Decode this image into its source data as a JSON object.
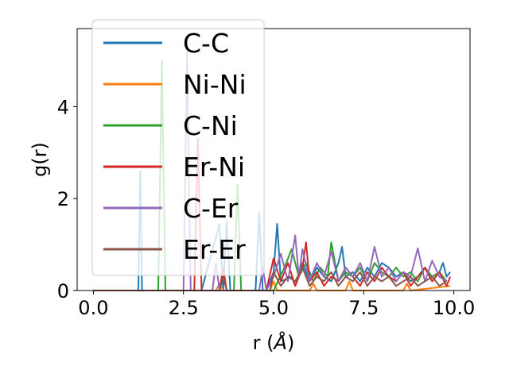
{
  "chart_data": {
    "type": "line",
    "title": "",
    "xlabel": "r (",
    "xlabel_unit": "Å",
    "xlabel_close": ")",
    "ylabel": "g(r)",
    "xlim": [
      -0.45,
      10.45
    ],
    "ylim": [
      0,
      5.7
    ],
    "grid": false,
    "legend_position": "top-left",
    "x_ticks": [
      0.0,
      2.5,
      5.0,
      7.5,
      10.0
    ],
    "x_tick_labels": [
      "0.0",
      "2.5",
      "5.0",
      "7.5",
      "10.0"
    ],
    "y_ticks": [
      0,
      2,
      4
    ],
    "y_tick_labels": [
      "0",
      "2",
      "4"
    ],
    "series": [
      {
        "name": "C-C",
        "color": "#1f77b4",
        "x": [
          0.0,
          1.25,
          1.3,
          1.35,
          1.5,
          3.0,
          3.5,
          3.6,
          3.7,
          3.8,
          4.5,
          4.6,
          4.7,
          4.8,
          5.0,
          5.1,
          5.2,
          5.5,
          5.6,
          5.8,
          6.0,
          6.2,
          6.4,
          6.6,
          6.8,
          6.9,
          7.0,
          7.2,
          7.4,
          7.6,
          7.8,
          8.0,
          8.2,
          8.4,
          8.6,
          8.8,
          9.0,
          9.2,
          9.4,
          9.6,
          9.7,
          9.8,
          9.9
        ],
        "y": [
          0,
          0,
          2.6,
          0,
          0,
          0,
          1.45,
          0,
          1.5,
          0,
          0,
          1.7,
          0,
          0,
          0.4,
          1.45,
          0.2,
          0.3,
          0.1,
          0.6,
          0.2,
          0.5,
          0.3,
          0.2,
          0.6,
          0.95,
          0.3,
          0.4,
          0.2,
          0.5,
          0.3,
          0.6,
          0.5,
          0.3,
          0.4,
          0.2,
          0.3,
          0.5,
          0.2,
          0.4,
          0.6,
          0.3,
          0.4
        ]
      },
      {
        "name": "Ni-Ni",
        "color": "#ff7f0e",
        "x": [
          0.0,
          2.4,
          2.5,
          2.6,
          3.4,
          3.5,
          3.6,
          4.9,
          5.0,
          5.1,
          6.0,
          6.1,
          6.2,
          7.0,
          7.1,
          7.2,
          8.6,
          8.7,
          8.8,
          9.9
        ],
        "y": [
          0,
          0,
          0,
          0,
          0,
          0.15,
          0,
          0,
          0.2,
          0,
          0,
          0.15,
          0,
          0,
          0.2,
          0,
          0,
          0.15,
          0,
          0.1
        ]
      },
      {
        "name": "C-Ni",
        "color": "#2ca02c",
        "x": [
          0.0,
          1.8,
          1.9,
          2.0,
          2.1,
          3.9,
          4.0,
          4.1,
          4.2,
          5.0,
          5.3,
          5.5,
          5.7,
          5.9,
          6.1,
          6.3,
          6.5,
          6.6,
          6.8,
          7.0,
          7.2,
          7.4,
          7.6,
          7.8,
          8.0,
          8.2,
          8.4,
          8.6,
          8.8,
          9.0,
          9.2,
          9.4,
          9.6,
          9.8
        ],
        "y": [
          0,
          0,
          5.0,
          0,
          0,
          0,
          2.3,
          0,
          0,
          0,
          0.5,
          0.9,
          0.3,
          0.6,
          0.2,
          0.5,
          0.3,
          1.05,
          0.2,
          0.4,
          0.3,
          0.5,
          0.2,
          0.6,
          0.4,
          0.3,
          0.5,
          0.3,
          0.4,
          0.2,
          0.5,
          0.3,
          0.4,
          0.2
        ]
      },
      {
        "name": "Er-Ni",
        "color": "#d62728",
        "x": [
          0.0,
          2.8,
          2.9,
          3.0,
          3.5,
          3.6,
          3.7,
          4.8,
          5.0,
          5.2,
          5.4,
          5.6,
          5.8,
          5.9,
          6.0,
          6.2,
          6.4,
          6.6,
          6.8,
          7.0,
          7.2,
          7.4,
          7.6,
          7.8,
          8.0,
          8.2,
          8.4,
          8.6,
          8.8,
          9.0,
          9.2,
          9.4,
          9.6,
          9.8,
          9.9
        ],
        "y": [
          0,
          0,
          3.3,
          0,
          0,
          0.5,
          0,
          0,
          0.7,
          0.2,
          0.6,
          0.1,
          0.5,
          1.05,
          0.2,
          0.4,
          0.1,
          0.3,
          0.2,
          0.5,
          0.3,
          0.1,
          0.4,
          0.2,
          0.5,
          0.3,
          0.2,
          0.4,
          0.1,
          0.3,
          0.5,
          0.2,
          0.4,
          0.1,
          0.3
        ]
      },
      {
        "name": "C-Er",
        "color": "#9467bd",
        "x": [
          0.0,
          2.5,
          2.6,
          2.7,
          2.8,
          3.3,
          3.4,
          3.5,
          4.6,
          4.7,
          4.8,
          5.0,
          5.2,
          5.4,
          5.6,
          5.7,
          5.8,
          6.0,
          6.2,
          6.4,
          6.6,
          6.8,
          7.0,
          7.2,
          7.4,
          7.6,
          7.8,
          8.0,
          8.2,
          8.4,
          8.6,
          8.8,
          9.0,
          9.2,
          9.4,
          9.6,
          9.8
        ],
        "y": [
          0,
          0,
          5.2,
          0,
          0,
          0,
          0.6,
          0,
          0,
          0.5,
          0,
          0.3,
          0.8,
          0.2,
          1.2,
          0.3,
          0.9,
          0.2,
          0.6,
          0.3,
          0.85,
          0.2,
          0.5,
          0.3,
          0.6,
          0.2,
          0.95,
          0.3,
          0.5,
          0.2,
          0.4,
          0.3,
          0.92,
          0.2,
          0.65,
          0.3,
          0.2
        ]
      },
      {
        "name": "Er-Er",
        "color": "#8c564b",
        "x": [
          0.0,
          3.5,
          3.6,
          3.7,
          3.8,
          4.9,
          5.0,
          5.2,
          5.4,
          5.6,
          5.8,
          6.0,
          6.2,
          6.4,
          6.6,
          6.8,
          7.0,
          7.2,
          7.4,
          7.6,
          7.8,
          8.0,
          8.2,
          8.4,
          8.6,
          8.8,
          9.0,
          9.2,
          9.4,
          9.6,
          9.8
        ],
        "y": [
          0,
          0,
          0.3,
          0,
          0,
          0,
          0.4,
          0.1,
          0.3,
          0.2,
          0.5,
          0.1,
          0.3,
          0.2,
          0.4,
          0.1,
          0.3,
          0.2,
          0.4,
          0.1,
          0.3,
          0.2,
          0.3,
          0.1,
          0.2,
          0.3,
          0.1,
          0.2,
          0.3,
          0.1,
          0.2
        ]
      }
    ]
  }
}
